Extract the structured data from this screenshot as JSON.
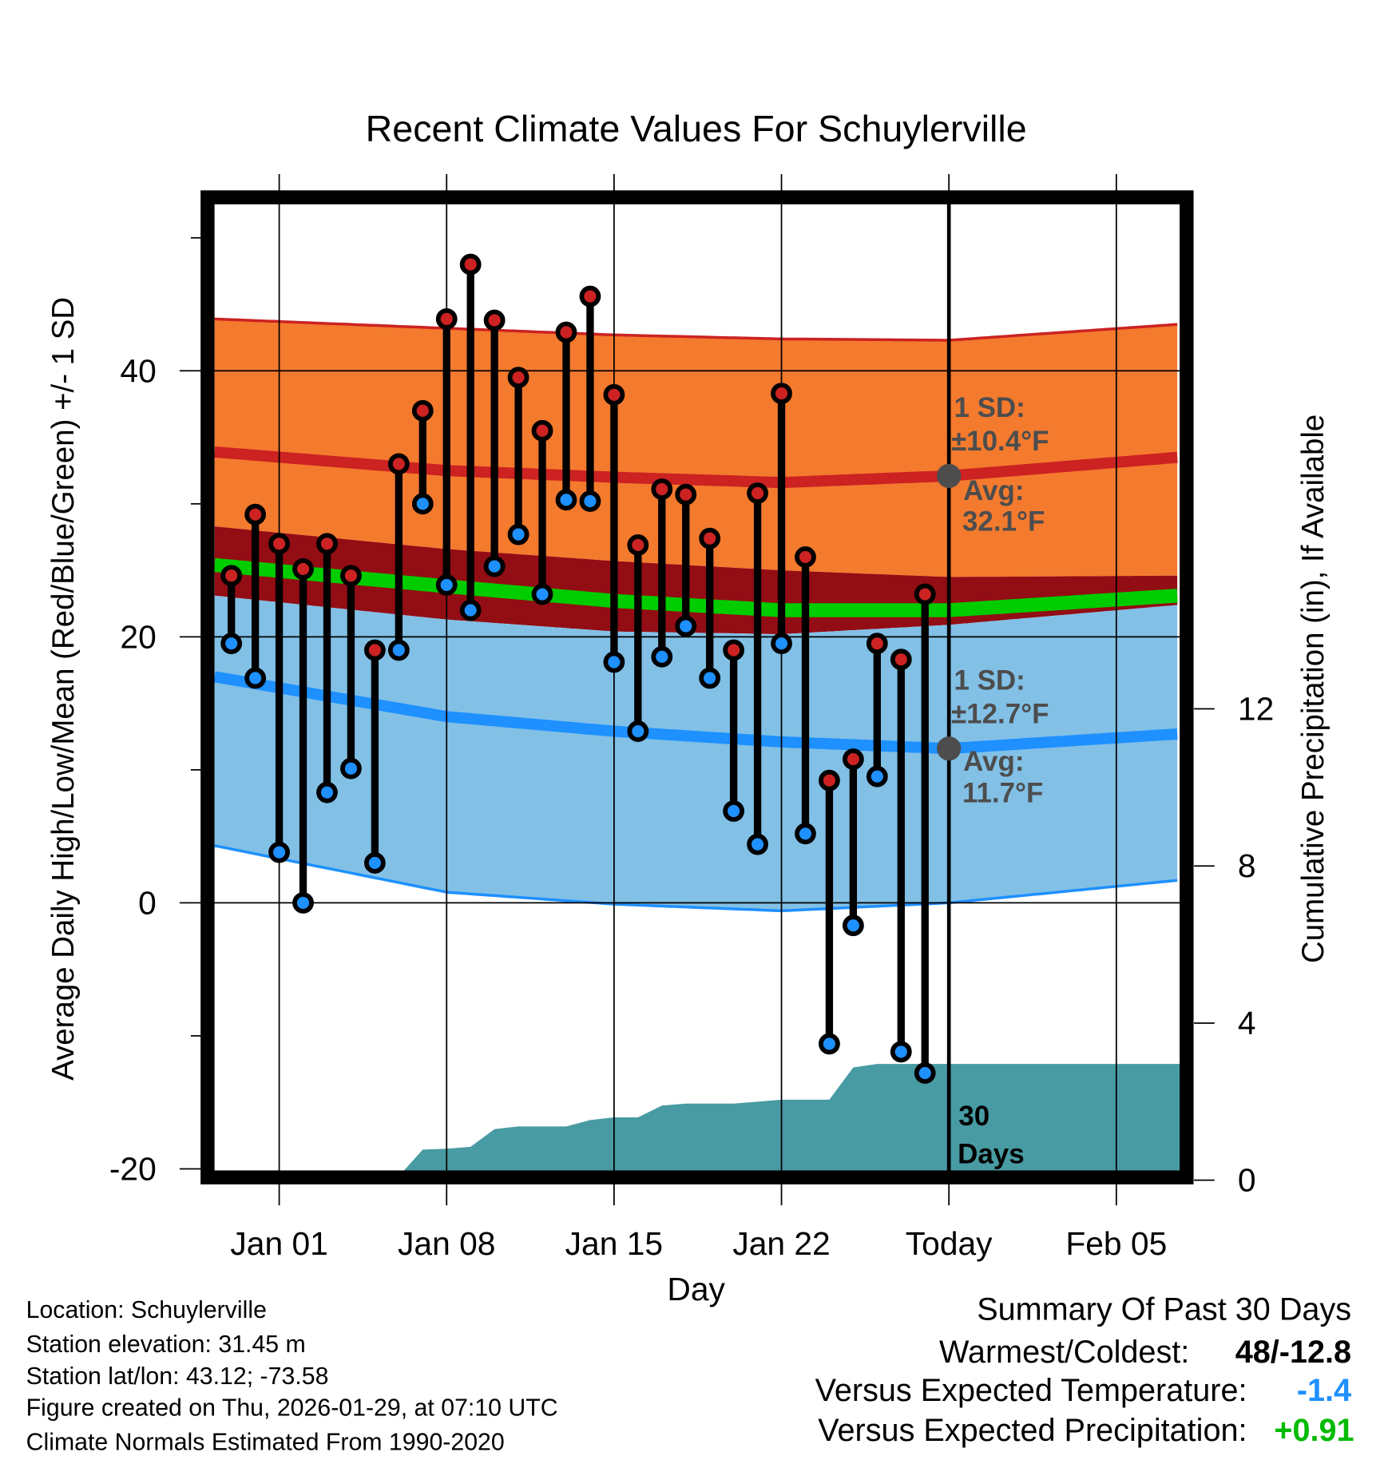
{
  "chart_data": {
    "type": "range-bar-with-bands",
    "title": "Recent Climate Values For Schuylerville",
    "xlabel": "Day",
    "ylabel": "Average Daily High/Low/Mean (Red/Blue/Green) +/- 1 SD",
    "y2label": "Cumulative Precipitation (in), If Available",
    "ylim": [
      -20,
      52.6
    ],
    "y2lim": [
      0,
      14
    ],
    "yticks": [
      -20,
      0,
      20,
      40
    ],
    "yticks_minor": [
      -10,
      10,
      30,
      50
    ],
    "y2ticks": [
      0,
      4,
      8,
      12
    ],
    "x_ticks": [
      {
        "day": 0,
        "label": "Jan 01"
      },
      {
        "day": 7,
        "label": "Jan 08"
      },
      {
        "day": 14,
        "label": "Jan 15"
      },
      {
        "day": 21,
        "label": "Jan 22"
      },
      {
        "day": 28,
        "label": "Today"
      },
      {
        "day": 35,
        "label": "Feb 05"
      }
    ],
    "x_unit": "days since Jan 01",
    "xlim": [
      -2.7,
      37.6
    ],
    "today_day": 28,
    "days": [
      -2,
      -1,
      0,
      1,
      2,
      3,
      4,
      5,
      6,
      7,
      8,
      9,
      10,
      11,
      12,
      13,
      14,
      15,
      16,
      17,
      18,
      19,
      20,
      21,
      22,
      23,
      24,
      25,
      26,
      27
    ],
    "highs": [
      24.6,
      29.2,
      27.0,
      25.1,
      27.0,
      24.6,
      19.0,
      33.0,
      37.0,
      43.9,
      48.0,
      43.8,
      39.5,
      35.5,
      42.9,
      45.6,
      38.2,
      26.9,
      31.1,
      30.7,
      27.4,
      19.0,
      30.8,
      38.3,
      26.0,
      9.2,
      10.8,
      19.5,
      18.3,
      23.2
    ],
    "lows": [
      19.5,
      16.9,
      3.8,
      0.0,
      8.3,
      10.1,
      3.0,
      19.0,
      30.0,
      23.9,
      22.0,
      25.3,
      27.7,
      23.2,
      30.3,
      30.2,
      18.1,
      12.9,
      18.5,
      20.8,
      16.9,
      6.9,
      4.4,
      19.5,
      5.2,
      -10.6,
      -1.7,
      9.5,
      -11.2,
      -12.8
    ],
    "precip_cumulative": [
      0,
      0,
      0,
      0,
      0,
      0,
      0,
      0.1,
      0.78,
      0.8,
      0.85,
      1.3,
      1.37,
      1.37,
      1.37,
      1.53,
      1.6,
      1.6,
      1.9,
      1.95,
      1.95,
      1.95,
      2.0,
      2.05,
      2.05,
      2.05,
      2.87,
      2.96,
      2.96,
      2.96
    ],
    "normals": {
      "days": [
        -2.7,
        7,
        14,
        21,
        28,
        37.6
      ],
      "high_upper": [
        43.9,
        43.2,
        42.7,
        42.4,
        42.3,
        43.5
      ],
      "high_avg": [
        33.9,
        32.5,
        32.0,
        31.6,
        32.1,
        33.5
      ],
      "high_lower": [
        28.3,
        26.6,
        25.7,
        25.0,
        24.5,
        24.6
      ],
      "mean": [
        25.4,
        23.8,
        22.7,
        22.0,
        22.0,
        23.1
      ],
      "low_upper": [
        23.1,
        21.3,
        20.4,
        20.2,
        20.9,
        22.4
      ],
      "low_avg": [
        17.0,
        14.0,
        12.9,
        12.1,
        11.6,
        12.7
      ],
      "low_lower": [
        4.3,
        0.8,
        -0.1,
        -0.6,
        0.0,
        1.7
      ]
    },
    "annotations": {
      "high_sd_1": "1 SD:",
      "high_sd_2": "±10.4°F",
      "high_avg_1": "Avg:",
      "high_avg_2": "32.1°F",
      "low_sd_1": "1 SD:",
      "low_sd_2": "±12.7°F",
      "low_avg_1": "Avg:",
      "low_avg_2": "11.7°F",
      "precip_1": "30",
      "precip_2": "Days"
    },
    "colors": {
      "high_band": "#f47a2e",
      "high_line": "#cc2222",
      "overlap": "#930d14",
      "mean": "#00cc00",
      "low_band": "#82c0e6",
      "low_line": "#1e90ff",
      "precip": "#489ba3",
      "high_dot": "#cc2222",
      "low_dot": "#1e90ff",
      "annotation": "#4d4d4d"
    }
  },
  "info": {
    "location": "Location: Schuylerville",
    "elevation": "Station elevation: 31.45 m",
    "latlon": "Station lat/lon: 43.12; -73.58",
    "created": "Figure created on Thu, 2026-01-29, at 07:10 UTC",
    "normals": "Climate Normals Estimated From 1990-2020"
  },
  "summary": {
    "title": "Summary Of Past 30 Days",
    "warmest_label": "Warmest/Coldest:",
    "warmest_value": "48/-12.8",
    "temp_label": "Versus Expected Temperature:",
    "temp_value": "-1.4",
    "precip_label": "Versus Expected Precipitation:",
    "precip_value": "+0.91"
  }
}
